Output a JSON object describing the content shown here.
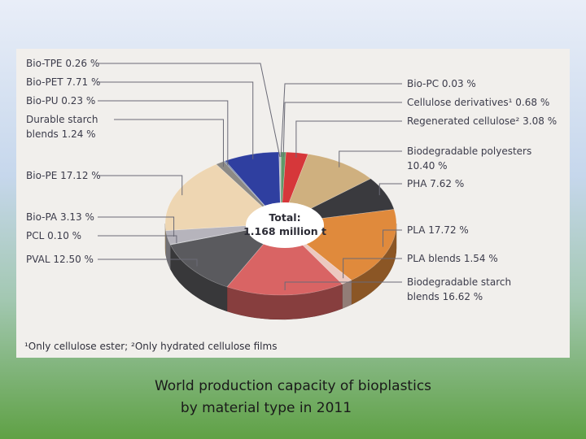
{
  "chart_data": {
    "type": "pie",
    "title": "",
    "center_label": [
      "Total:",
      "1.168 million t"
    ],
    "slices": [
      {
        "label": "Bio-PC",
        "value": 0.03,
        "text": "Bio-PC 0.03 %",
        "color": "#6d9d7a"
      },
      {
        "label": "Cellulose derivatives",
        "value": 0.68,
        "text": "Cellulose derivatives¹ 0.68 %",
        "color": "#5f9a6a"
      },
      {
        "label": "Regenerated cellulose",
        "value": 3.08,
        "text": "Regenerated cellulose² 3.08 %",
        "color": "#d6373a"
      },
      {
        "label": "Biodegradable polyesters",
        "value": 10.4,
        "text": "Biodegradable polyesters 10.40 %",
        "color": "#cfb07f"
      },
      {
        "label": "PHA",
        "value": 7.62,
        "text": "PHA 7.62 %",
        "color": "#3a3a3e"
      },
      {
        "label": "PLA",
        "value": 17.72,
        "text": "PLA 17.72 %",
        "color": "#e08a3c"
      },
      {
        "label": "PLA blends",
        "value": 1.54,
        "text": "PLA blends 1.54 %",
        "color": "#ecc9c0"
      },
      {
        "label": "Biodegradable starch blends",
        "value": 16.62,
        "text": "Biodegradable starch blends 16.62 %",
        "color": "#d96464"
      },
      {
        "label": "PVAL",
        "value": 12.5,
        "text": "PVAL 12.50 %",
        "color": "#5a5a5e"
      },
      {
        "label": "PCL",
        "value": 0.1,
        "text": "PCL 0.10 %",
        "color": "#9aa0a8"
      },
      {
        "label": "Bio-PA",
        "value": 3.13,
        "text": "Bio-PA 3.13 %",
        "color": "#b6b4bc"
      },
      {
        "label": "Bio-PE",
        "value": 17.12,
        "text": "Bio-PE 17.12 %",
        "color": "#eed6b2"
      },
      {
        "label": "Durable starch blends",
        "value": 1.24,
        "text": "Durable starch blends 1.24 %",
        "color": "#8c8a86"
      },
      {
        "label": "Bio-PU",
        "value": 0.23,
        "text": "Bio-PU 0.23 %",
        "color": "#7a8aa8"
      },
      {
        "label": "Bio-PET",
        "value": 7.71,
        "text": "Bio-PET 7.71 %",
        "color": "#2f3fa0"
      },
      {
        "label": "Bio-TPE",
        "value": 0.26,
        "text": "Bio-TPE 0.26 %",
        "color": "#c0c2c8"
      }
    ],
    "labels_left": [
      {
        "slice": "Bio-TPE",
        "lines": [
          "Bio-TPE 0.26 %"
        ]
      },
      {
        "slice": "Bio-PET",
        "lines": [
          "Bio-PET 7.71 %"
        ]
      },
      {
        "slice": "Bio-PU",
        "lines": [
          "Bio-PU 0.23 %"
        ]
      },
      {
        "slice": "Durable starch blends",
        "lines": [
          "Durable starch",
          "blends 1.24 %"
        ]
      },
      {
        "slice": "Bio-PE",
        "lines": [
          "Bio-PE 17.12 %"
        ]
      },
      {
        "slice": "Bio-PA",
        "lines": [
          "Bio-PA 3.13 %"
        ]
      },
      {
        "slice": "PCL",
        "lines": [
          "PCL 0.10 %"
        ]
      },
      {
        "slice": "PVAL",
        "lines": [
          "PVAL 12.50 %"
        ]
      }
    ],
    "labels_right": [
      {
        "slice": "Bio-PC",
        "lines": [
          "Bio-PC 0.03 %"
        ]
      },
      {
        "slice": "Cellulose derivatives",
        "lines": [
          "Cellulose derivatives¹ 0.68 %"
        ]
      },
      {
        "slice": "Regenerated cellulose",
        "lines": [
          "Regenerated cellulose² 3.08 %"
        ]
      },
      {
        "slice": "Biodegradable polyesters",
        "lines": [
          "Biodegradable polyesters",
          "10.40 %"
        ]
      },
      {
        "slice": "PHA",
        "lines": [
          "PHA 7.62 %"
        ]
      },
      {
        "slice": "PLA",
        "lines": [
          "PLA 17.72 %"
        ]
      },
      {
        "slice": "PLA blends",
        "lines": [
          "PLA blends 1.54 %"
        ]
      },
      {
        "slice": "Biodegradable starch blends",
        "lines": [
          "Biodegradable starch",
          "blends 16.62 %"
        ]
      }
    ],
    "footnote": "¹Only cellulose ester; ²Only hydrated cellulose films"
  },
  "caption": {
    "line1": "World production capacity of bioplastics",
    "line2": "by material type in 2011"
  }
}
